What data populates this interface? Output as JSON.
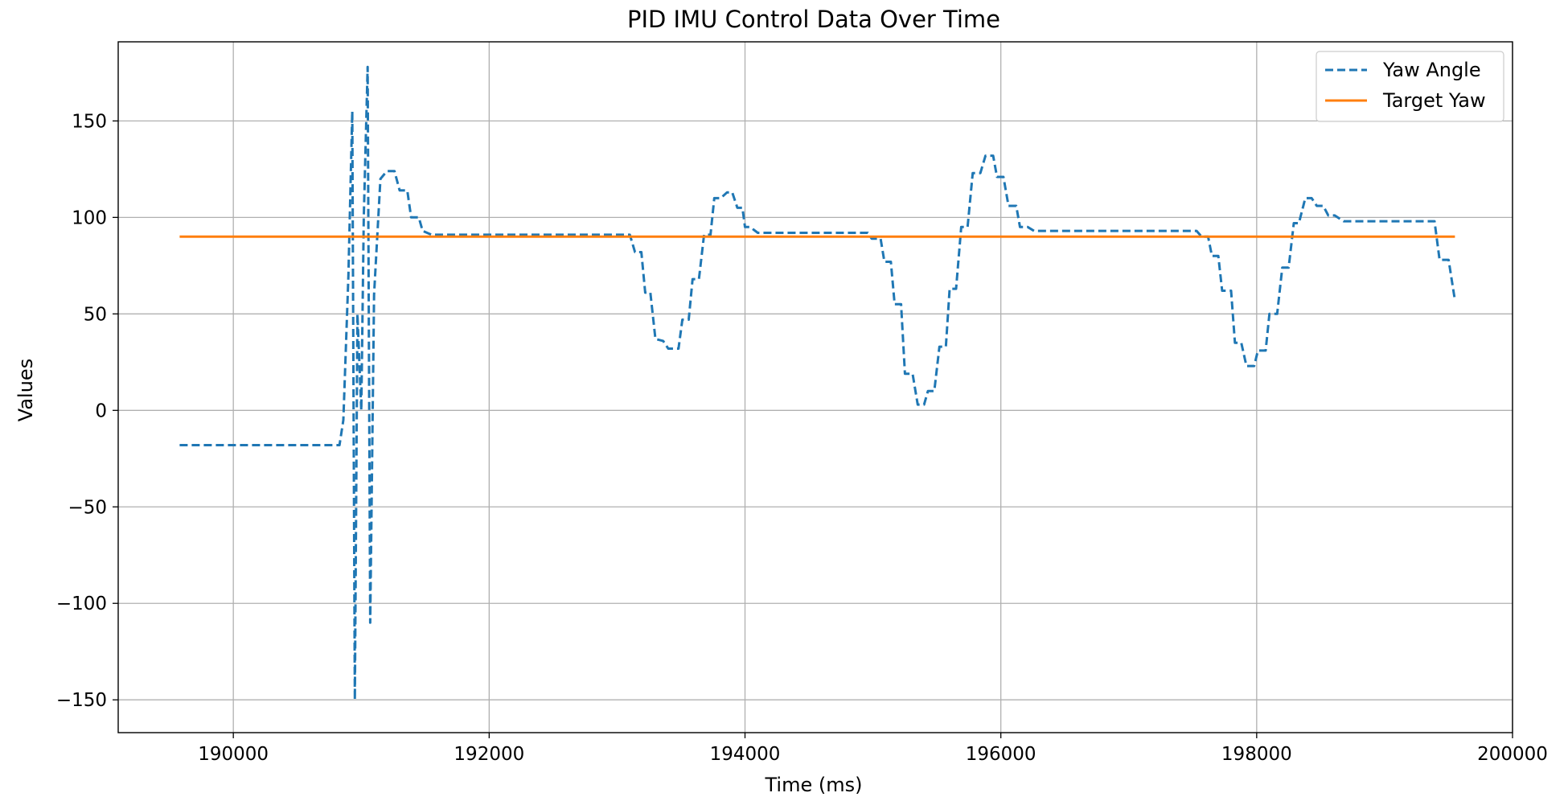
{
  "chart_data": {
    "type": "line",
    "title": "PID IMU Control Data Over Time",
    "xlabel": "Time (ms)",
    "ylabel": "Values",
    "xlim": [
      189100,
      200000
    ],
    "ylim": [
      -167,
      191
    ],
    "xticks": [
      190000,
      192000,
      194000,
      196000,
      198000,
      200000
    ],
    "yticks": [
      -150,
      -100,
      -50,
      0,
      50,
      100,
      150
    ],
    "grid": true,
    "legend_position": "upper right",
    "colors": {
      "yaw": "#1f77b4",
      "target": "#ff7f0e"
    },
    "series": [
      {
        "name": "Yaw Angle",
        "style": "dashed",
        "color": "#1f77b4",
        "points": [
          [
            189580,
            -18
          ],
          [
            190830,
            -18
          ],
          [
            190860,
            -5
          ],
          [
            190900,
            70
          ],
          [
            190930,
            155
          ],
          [
            190950,
            -150
          ],
          [
            190970,
            50
          ],
          [
            191000,
            0
          ],
          [
            191020,
            100
          ],
          [
            191050,
            178
          ],
          [
            191070,
            -110
          ],
          [
            191100,
            60
          ],
          [
            191150,
            120
          ],
          [
            191200,
            124
          ],
          [
            191260,
            124
          ],
          [
            191300,
            114
          ],
          [
            191360,
            114
          ],
          [
            191390,
            100
          ],
          [
            191450,
            100
          ],
          [
            191480,
            93
          ],
          [
            191550,
            91
          ],
          [
            193100,
            91
          ],
          [
            193140,
            82
          ],
          [
            193190,
            82
          ],
          [
            193220,
            61
          ],
          [
            193260,
            61
          ],
          [
            193300,
            37
          ],
          [
            193360,
            36
          ],
          [
            193400,
            32
          ],
          [
            193480,
            32
          ],
          [
            193510,
            47
          ],
          [
            193560,
            47
          ],
          [
            193590,
            68
          ],
          [
            193640,
            68
          ],
          [
            193680,
            91
          ],
          [
            193730,
            91
          ],
          [
            193760,
            110
          ],
          [
            193810,
            110
          ],
          [
            193860,
            113
          ],
          [
            193900,
            113
          ],
          [
            193940,
            105
          ],
          [
            193980,
            105
          ],
          [
            194000,
            95
          ],
          [
            194040,
            95
          ],
          [
            194100,
            92
          ],
          [
            194960,
            92
          ],
          [
            194990,
            89
          ],
          [
            195060,
            89
          ],
          [
            195090,
            77
          ],
          [
            195140,
            77
          ],
          [
            195170,
            55
          ],
          [
            195220,
            55
          ],
          [
            195250,
            19
          ],
          [
            195310,
            19
          ],
          [
            195350,
            3
          ],
          [
            195400,
            3
          ],
          [
            195430,
            10
          ],
          [
            195480,
            10
          ],
          [
            195520,
            33
          ],
          [
            195570,
            33
          ],
          [
            195600,
            63
          ],
          [
            195650,
            63
          ],
          [
            195690,
            95
          ],
          [
            195740,
            95
          ],
          [
            195780,
            123
          ],
          [
            195840,
            123
          ],
          [
            195880,
            132
          ],
          [
            195940,
            132
          ],
          [
            195970,
            121
          ],
          [
            196020,
            121
          ],
          [
            196060,
            106
          ],
          [
            196120,
            106
          ],
          [
            196150,
            95
          ],
          [
            196210,
            95
          ],
          [
            196260,
            93
          ],
          [
            197530,
            93
          ],
          [
            197570,
            90
          ],
          [
            197620,
            90
          ],
          [
            197650,
            80
          ],
          [
            197700,
            80
          ],
          [
            197730,
            62
          ],
          [
            197800,
            62
          ],
          [
            197830,
            35
          ],
          [
            197880,
            35
          ],
          [
            197920,
            23
          ],
          [
            197980,
            23
          ],
          [
            198010,
            31
          ],
          [
            198070,
            31
          ],
          [
            198100,
            50
          ],
          [
            198160,
            50
          ],
          [
            198200,
            74
          ],
          [
            198250,
            74
          ],
          [
            198290,
            97
          ],
          [
            198330,
            97
          ],
          [
            198380,
            110
          ],
          [
            198430,
            110
          ],
          [
            198470,
            106
          ],
          [
            198520,
            106
          ],
          [
            198560,
            101
          ],
          [
            198610,
            101
          ],
          [
            198680,
            98
          ],
          [
            199390,
            98
          ],
          [
            199430,
            78
          ],
          [
            199500,
            78
          ],
          [
            199550,
            57
          ]
        ]
      },
      {
        "name": "Target Yaw",
        "style": "solid",
        "color": "#ff7f0e",
        "points": [
          [
            189580,
            90
          ],
          [
            199550,
            90
          ]
        ]
      }
    ]
  }
}
